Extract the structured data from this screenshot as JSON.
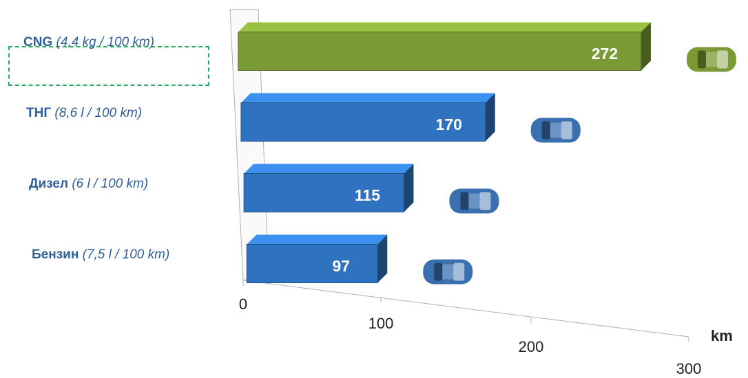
{
  "chart_data": {
    "type": "bar",
    "orientation": "horizontal",
    "categories": [
      {
        "name": "CNG",
        "detail": "(4,4 kg / 100 km)"
      },
      {
        "name": "ТНГ",
        "detail": "(8,6 l / 100 km)"
      },
      {
        "name": "Дизел",
        "detail": "(6 l / 100 km)"
      },
      {
        "name": "Бензин",
        "detail": "(7,5 l / 100 km)"
      }
    ],
    "values": [
      272,
      170,
      115,
      97
    ],
    "value_labels": [
      "272",
      "170",
      "115",
      "97"
    ],
    "xlim": [
      0,
      300
    ],
    "x_ticks": [
      "0",
      "100",
      "200",
      "300"
    ],
    "x_unit": "km",
    "colors": [
      "#7a9a36",
      "#2f73c0",
      "#2f73c0",
      "#2f73c0"
    ],
    "highlighted_category": "CNG",
    "highlight_color": "#27ae60",
    "icons": [
      "car-icon",
      "car-icon",
      "car-icon",
      "car-icon"
    ]
  }
}
